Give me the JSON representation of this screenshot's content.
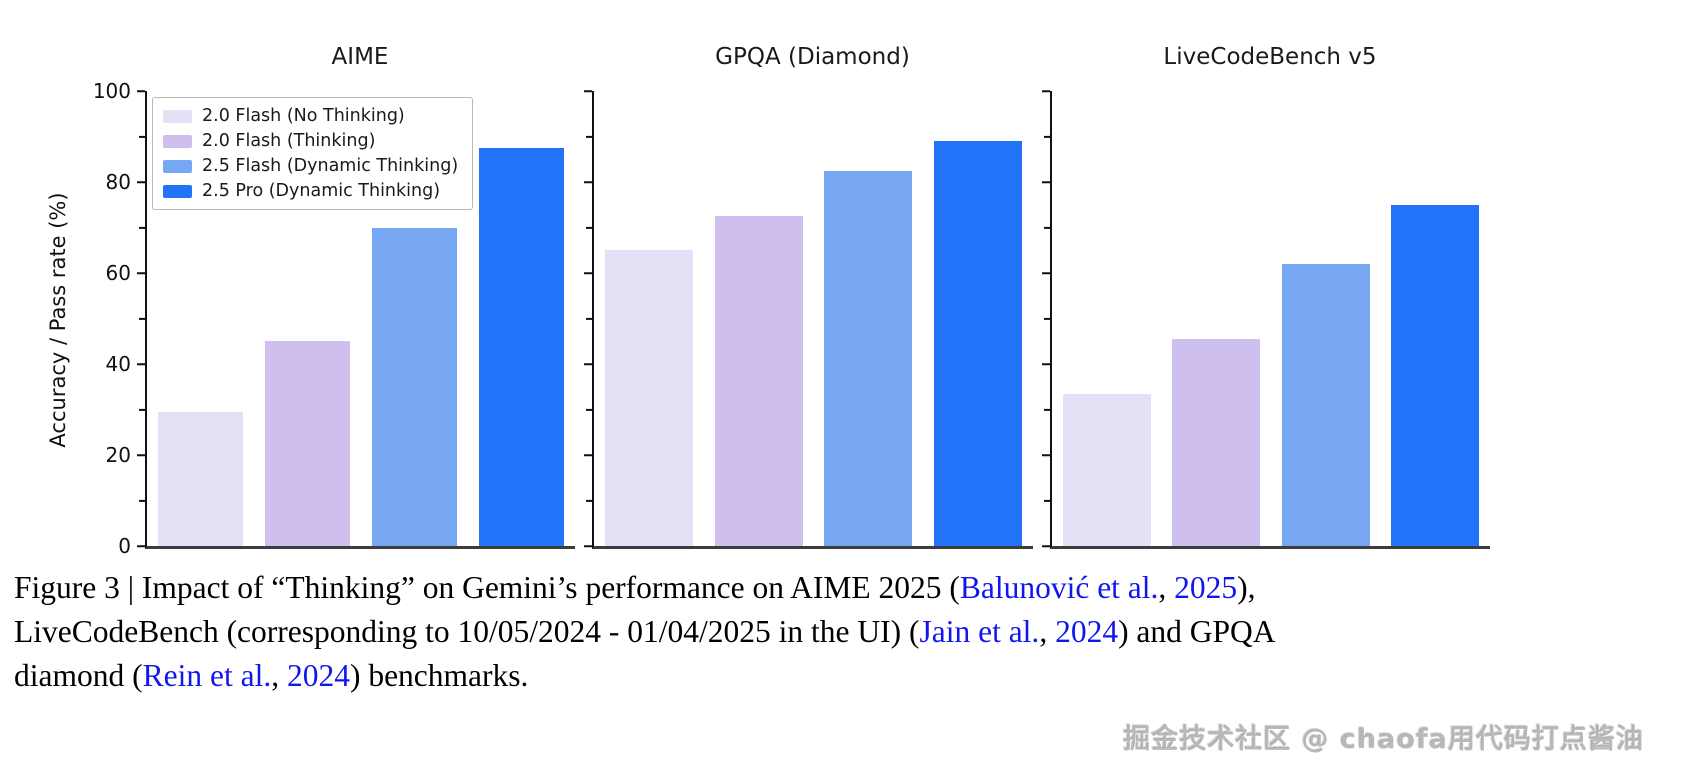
{
  "figure": {
    "ylabel": "Accuracy / Pass rate (%)",
    "legend": [
      {
        "label": "2.0 Flash (No Thinking)",
        "color": "#e4e0f5"
      },
      {
        "label": "2.0 Flash (Thinking)",
        "color": "#cfbfee"
      },
      {
        "label": "2.5 Flash (Dynamic Thinking)",
        "color": "#77a6f3"
      },
      {
        "label": "2.5 Pro (Dynamic Thinking)",
        "color": "#2173f7"
      }
    ]
  },
  "chart_data": [
    {
      "type": "bar",
      "title": "AIME",
      "categories": [
        "2.0 Flash (No Thinking)",
        "2.0 Flash (Thinking)",
        "2.5 Flash (Dynamic Thinking)",
        "2.5 Pro (Dynamic Thinking)"
      ],
      "values": [
        29.5,
        45,
        70,
        87.5
      ],
      "xlabel": "",
      "ylabel": "Accuracy / Pass rate (%)",
      "ylim": [
        0,
        100
      ],
      "yticks": [
        0,
        20,
        40,
        60,
        80,
        100
      ],
      "minor_tick_step": 10,
      "grid": false,
      "legend_position": "upper left"
    },
    {
      "type": "bar",
      "title": "GPQA (Diamond)",
      "categories": [
        "2.0 Flash (No Thinking)",
        "2.0 Flash (Thinking)",
        "2.5 Flash (Dynamic Thinking)",
        "2.5 Pro (Dynamic Thinking)"
      ],
      "values": [
        65,
        72.5,
        82.5,
        89
      ],
      "xlabel": "",
      "ylabel": "",
      "ylim": [
        0,
        100
      ],
      "yticks": [
        0,
        20,
        40,
        60,
        80,
        100
      ],
      "minor_tick_step": 10,
      "grid": false,
      "legend_position": "none"
    },
    {
      "type": "bar",
      "title": "LiveCodeBench v5",
      "categories": [
        "2.0 Flash (No Thinking)",
        "2.0 Flash (Thinking)",
        "2.5 Flash (Dynamic Thinking)",
        "2.5 Pro (Dynamic Thinking)"
      ],
      "values": [
        33.5,
        45.5,
        62,
        75
      ],
      "xlabel": "",
      "ylabel": "",
      "ylim": [
        0,
        100
      ],
      "yticks": [
        0,
        20,
        40,
        60,
        80,
        100
      ],
      "minor_tick_step": 10,
      "grid": false,
      "legend_position": "none"
    }
  ],
  "caption": {
    "lines": [
      {
        "segments": [
          {
            "text": "Figure 3 | Impact of “Thinking” on Gemini’s performance on AIME 2025 (",
            "style": "plain"
          },
          {
            "text": "Balunović et al.",
            "style": "link"
          },
          {
            "text": ", ",
            "style": "plain"
          },
          {
            "text": "2025",
            "style": "link"
          },
          {
            "text": "),",
            "style": "plain"
          }
        ]
      },
      {
        "segments": [
          {
            "text": "LiveCodeBench (corresponding to 10/05/2024 - 01/04/2025 in the UI) (",
            "style": "plain"
          },
          {
            "text": "Jain et al.",
            "style": "link"
          },
          {
            "text": ", ",
            "style": "plain"
          },
          {
            "text": "2024",
            "style": "link"
          },
          {
            "text": ") and GPQA",
            "style": "plain"
          }
        ]
      },
      {
        "segments": [
          {
            "text": "diamond (",
            "style": "plain"
          },
          {
            "text": "Rein et al.",
            "style": "link"
          },
          {
            "text": ", ",
            "style": "plain"
          },
          {
            "text": "2024",
            "style": "link"
          },
          {
            "text": ") benchmarks.",
            "style": "plain"
          }
        ]
      }
    ]
  },
  "watermark": {
    "text": "掘金技术社区 @ chaofa用代码打点酱油"
  }
}
